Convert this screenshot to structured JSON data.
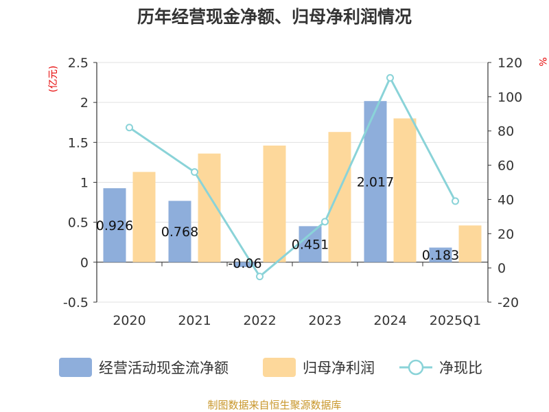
{
  "chart_data": {
    "type": "bar",
    "title": "历年经营现金净额、归母净利润情况",
    "categories": [
      "2020",
      "2021",
      "2022",
      "2023",
      "2024",
      "2025Q1"
    ],
    "series": [
      {
        "name": "经营活动现金流净额",
        "type": "bar",
        "axis": "left",
        "color": "#8eaedb",
        "values": [
          0.926,
          0.768,
          -0.06,
          0.451,
          2.017,
          0.183
        ]
      },
      {
        "name": "归母净利润",
        "type": "bar",
        "axis": "left",
        "color": "#fdd89b",
        "values": [
          1.13,
          1.36,
          1.46,
          1.63,
          1.8,
          0.46
        ]
      },
      {
        "name": "净现比",
        "type": "line",
        "axis": "right",
        "color": "#8ad3d8",
        "values": [
          82,
          56,
          -5,
          27,
          111,
          39
        ]
      }
    ],
    "data_labels": [
      "0.926",
      "0.768",
      "-0.06",
      "0.451",
      "2.017",
      "0.183"
    ],
    "left_axis": {
      "unit": "(亿元)",
      "min": -0.5,
      "max": 2.5,
      "ticks": [
        "-0.5",
        "0",
        "0.5",
        "1",
        "1.5",
        "2",
        "2.5"
      ]
    },
    "right_axis": {
      "unit": "%",
      "min": -20,
      "max": 120,
      "ticks": [
        "-20",
        "0",
        "20",
        "40",
        "60",
        "80",
        "100",
        "120"
      ]
    },
    "grid": "horizontal",
    "legend_position": "bottom"
  },
  "source": "制图数据来自恒生聚源数据库"
}
